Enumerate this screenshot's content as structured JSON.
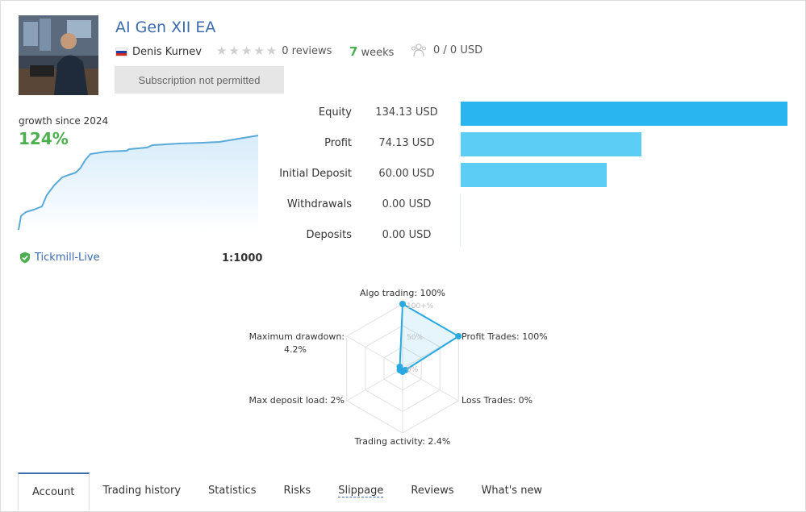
{
  "header": {
    "title": "AI Gen XII EA",
    "author": "Denis Kurnev",
    "reviews": "0 reviews",
    "weeks_num": "7",
    "weeks_label": "weeks",
    "subscribers": "0 / 0 USD",
    "subscribe_button": "Subscription not permitted"
  },
  "growth": {
    "label": "growth since 2024",
    "value": "124%"
  },
  "account": {
    "broker": "Tickmill-Live",
    "leverage": "1:1000"
  },
  "metrics": [
    {
      "label": "Equity",
      "value": "134.13 USD",
      "amount": 134.13,
      "color": "#29b6f0"
    },
    {
      "label": "Profit",
      "value": "74.13 USD",
      "amount": 74.13,
      "color": "#5ccdf5"
    },
    {
      "label": "Initial Deposit",
      "value": "60.00 USD",
      "amount": 60.0,
      "color": "#5ccdf5"
    },
    {
      "label": "Withdrawals",
      "value": "0.00 USD",
      "amount": 0,
      "color": "#5ccdf5"
    },
    {
      "label": "Deposits",
      "value": "0.00 USD",
      "amount": 0,
      "color": "#5ccdf5"
    }
  ],
  "chart_data": {
    "type": "radar",
    "axes": [
      {
        "label": "Algo trading: 100%",
        "value": 100
      },
      {
        "label": "Profit Trades: 100%",
        "value": 100
      },
      {
        "label": "Loss Trades: 0%",
        "value": 0
      },
      {
        "label": "Trading activity: 2.4%",
        "value": 2.4
      },
      {
        "label": "Max deposit load: 2%",
        "value": 2
      },
      {
        "label": "Maximum drawdown:",
        "label2": "4.2%",
        "value": 4.2
      }
    ],
    "rings": [
      "100+%",
      "50%",
      "0%"
    ],
    "color": "#29a9e0"
  },
  "tabs": [
    {
      "label": "Account"
    },
    {
      "label": "Trading history"
    },
    {
      "label": "Statistics"
    },
    {
      "label": "Risks"
    },
    {
      "label": "Slippage"
    },
    {
      "label": "Reviews"
    },
    {
      "label": "What's new"
    }
  ]
}
